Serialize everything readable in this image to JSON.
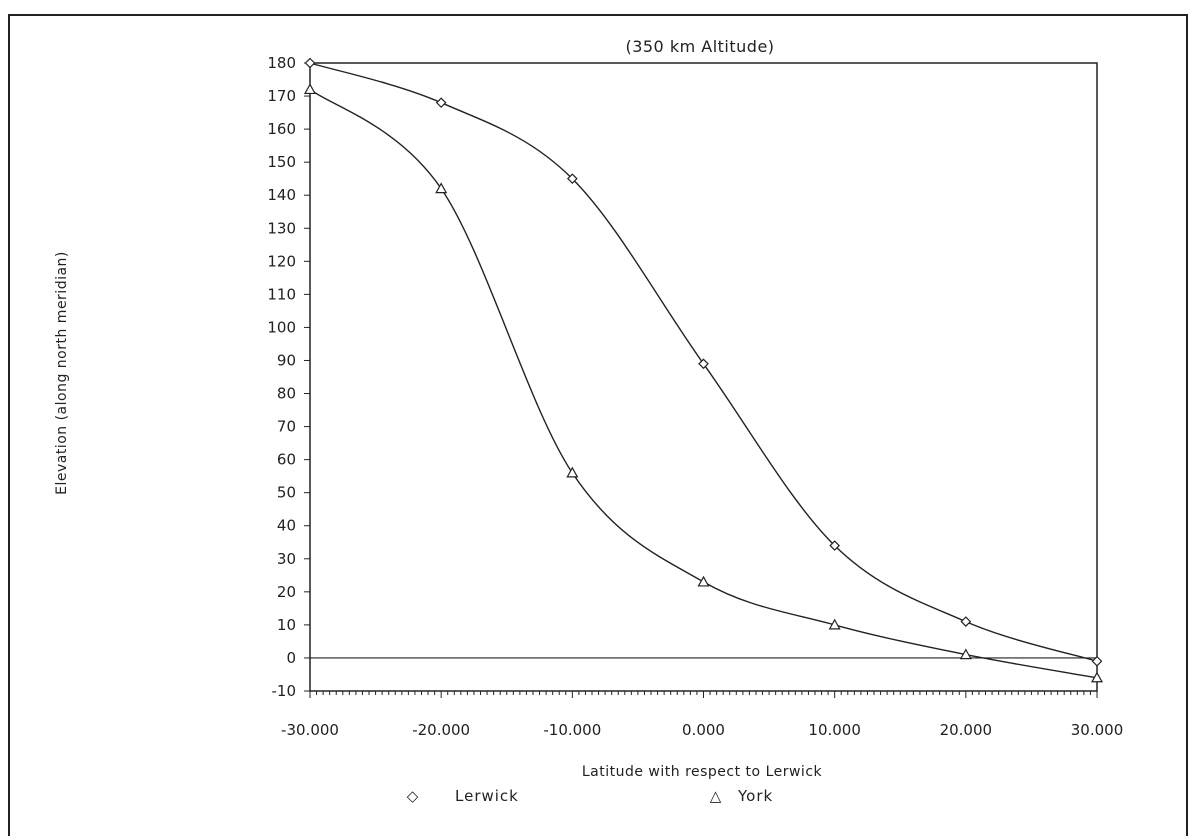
{
  "chart_data": {
    "type": "line",
    "title": "(350 km Altitude)",
    "xlabel": "Latitude with respect to Lerwick",
    "ylabel": "Elevation (along north meridian)",
    "xlim": [
      -30,
      30
    ],
    "ylim": [
      -10,
      180
    ],
    "x_ticks": [
      "-30.000",
      "-20.000",
      "-10.000",
      "0.000",
      "10.000",
      "20.000",
      "30.000"
    ],
    "y_ticks": [
      "-10",
      "0",
      "10",
      "20",
      "30",
      "40",
      "50",
      "60",
      "70",
      "80",
      "90",
      "100",
      "110",
      "120",
      "130",
      "140",
      "150",
      "160",
      "170",
      "180"
    ],
    "x": [
      -30,
      -20,
      -10,
      0,
      10,
      20,
      30
    ],
    "series": [
      {
        "name": "Lerwick",
        "marker": "diamond",
        "values": [
          180,
          168,
          145,
          89,
          34,
          11,
          -1
        ]
      },
      {
        "name": "York",
        "marker": "triangle",
        "values": [
          172,
          142,
          56,
          23,
          10,
          1,
          -6
        ]
      }
    ],
    "legend": {
      "placement": "bottom",
      "items": [
        {
          "symbol": "◇",
          "label": "Lerwick"
        },
        {
          "symbol": "△",
          "label": "York"
        }
      ]
    },
    "colors": {
      "line": "#222222",
      "background": "#ffffff"
    },
    "grid": false
  }
}
